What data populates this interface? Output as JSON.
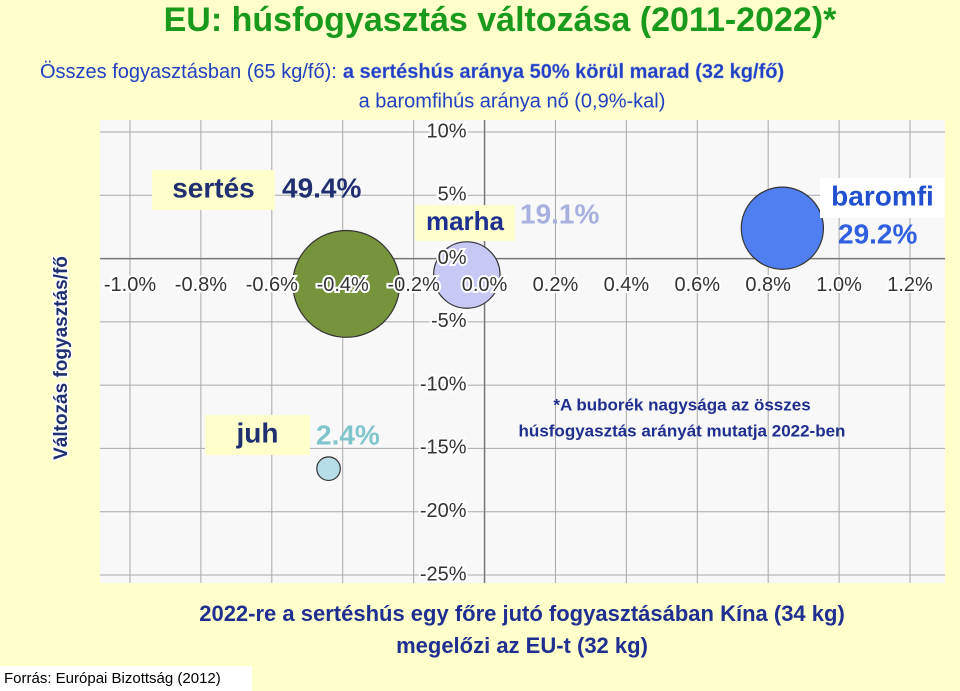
{
  "chart_data": {
    "type": "bubble",
    "title": "EU: húsfogyasztás változása (2011-2022)*",
    "subtitle": {
      "prefix": "Összes fogyasztásban (65 kg/fő):",
      "highlight": "a sertéshús aránya 50% körül marad (32 kg/fő)",
      "line2": "a baromfihús aránya nő (0,9%-kal)"
    },
    "y_axis_label": "Változás fogyasztás/fő",
    "annotation": [
      "*A buborék nagysága az összes",
      "húsfogyasztás arányát mutatja 2022-ben"
    ],
    "xlim": [
      -1.0,
      1.2
    ],
    "ylim": [
      -25,
      10
    ],
    "xticks": [
      {
        "value": -1.0,
        "label": "-1.0%"
      },
      {
        "value": -0.8,
        "label": "-0.8%"
      },
      {
        "value": -0.6,
        "label": "-0.6%"
      },
      {
        "value": -0.4,
        "label": "-0.4%"
      },
      {
        "value": -0.2,
        "label": "-0.2%"
      },
      {
        "value": 0.0,
        "label": "0.0%"
      },
      {
        "value": 0.2,
        "label": "0.2%"
      },
      {
        "value": 0.4,
        "label": "0.4%"
      },
      {
        "value": 0.6,
        "label": "0.6%"
      },
      {
        "value": 0.8,
        "label": "0.8%"
      },
      {
        "value": 1.0,
        "label": "1.0%"
      },
      {
        "value": 1.2,
        "label": "1.2%"
      }
    ],
    "yticks": [
      {
        "value": 10,
        "label": "10%"
      },
      {
        "value": 5,
        "label": "5%"
      },
      {
        "value": 0,
        "label": "0%"
      },
      {
        "value": -5,
        "label": "-5%"
      },
      {
        "value": -10,
        "label": "-10%"
      },
      {
        "value": -15,
        "label": "-15%"
      },
      {
        "value": -20,
        "label": "-20%"
      },
      {
        "value": -25,
        "label": "-25%"
      }
    ],
    "grid": true,
    "series": [
      {
        "name": "sertés",
        "color": "#77933c",
        "x": [
          -0.39
        ],
        "values": [
          -2.0
        ],
        "sizes": [
          49.4
        ],
        "size_labels": [
          "49.4%"
        ]
      },
      {
        "name": "marha",
        "color": "#c8c8f4",
        "x": [
          -0.05
        ],
        "values": [
          -1.3
        ],
        "sizes": [
          19.1
        ],
        "size_labels": [
          "19.1%"
        ]
      },
      {
        "name": "baromfi",
        "color": "#4f7ff0",
        "x": [
          0.84
        ],
        "values": [
          2.4
        ],
        "sizes": [
          29.2
        ],
        "size_labels": [
          "29.2%"
        ]
      },
      {
        "name": "juh",
        "color": "#b7dde8",
        "x": [
          -0.44
        ],
        "values": [
          -16.6
        ],
        "sizes": [
          2.4
        ],
        "size_labels": [
          "2.4%"
        ]
      }
    ]
  },
  "footer": [
    "2022-re a sertéshús egy főre jutó fogyasztásában Kína (34 kg)",
    "megelőzi az EU-t (32 kg)"
  ],
  "source": "Forrás: Európai Bizottság (2012)"
}
